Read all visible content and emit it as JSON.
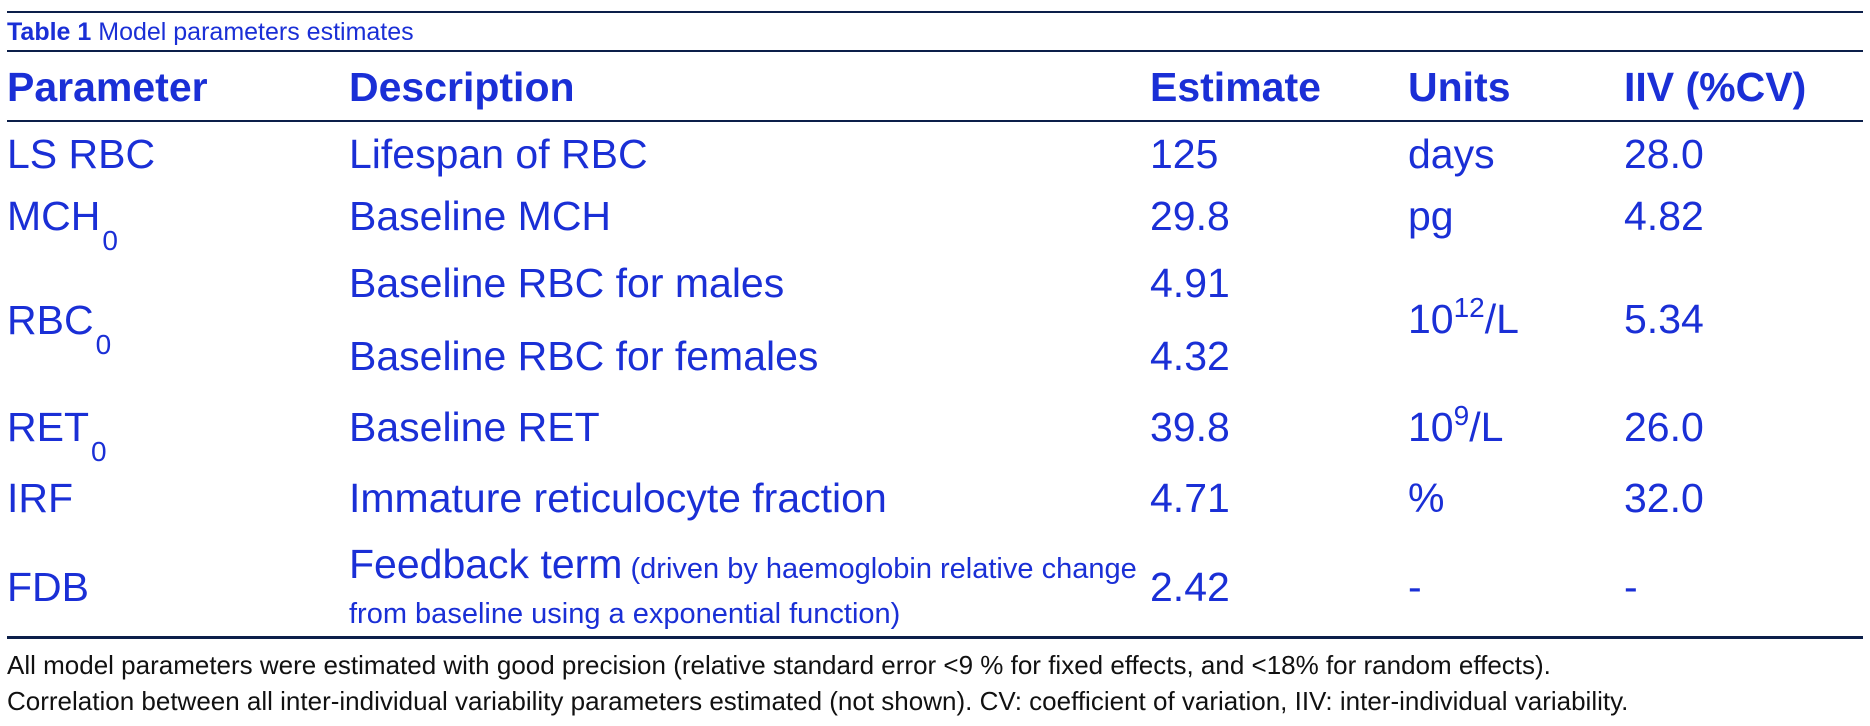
{
  "caption": {
    "label": "Table 1",
    "text": " Model parameters estimates"
  },
  "headers": {
    "parameter": "Parameter",
    "description": "Description",
    "estimate": "Estimate",
    "units": "Units",
    "iiv": "IIV (%CV)"
  },
  "rows": {
    "ls_rbc": {
      "param": "LS RBC",
      "desc": "Lifespan of RBC",
      "estimate": "125",
      "units": "days",
      "iiv": "28.0"
    },
    "mch0": {
      "param": "MCH",
      "param_sub": "0",
      "desc": "Baseline MCH",
      "estimate": "29.8",
      "units": "pg",
      "iiv": "4.82"
    },
    "rbc0": {
      "param": "RBC",
      "param_sub": "0",
      "desc_males": "Baseline RBC for males",
      "estimate_males": "4.91",
      "desc_females": "Baseline RBC for females",
      "estimate_females": "4.32",
      "units_base": "10",
      "units_sup": "12",
      "units_tail": "/L",
      "iiv": "5.34"
    },
    "ret0": {
      "param": "RET",
      "param_sub": "0",
      "desc": "Baseline RET",
      "estimate": "39.8",
      "units_base": "10",
      "units_sup": "9",
      "units_tail": "/L",
      "iiv": "26.0"
    },
    "irf": {
      "param": "IRF",
      "desc": "Immature reticulocyte fraction",
      "estimate": "4.71",
      "units": "%",
      "iiv": "32.0"
    },
    "fdb": {
      "param": "FDB",
      "desc_main": "Feedback term",
      "desc_note": " (driven by haemoglobin relative change from baseline using a exponential function)",
      "estimate": "2.42",
      "units": "-",
      "iiv": "-"
    }
  },
  "footnotes": {
    "line1": "All model parameters were estimated with good precision (relative standard error <9 % for fixed effects, and <18% for random effects).",
    "line2": "Correlation between all inter-individual variability parameters estimated (not shown). CV: coefficient of variation, IIV: inter-individual variability."
  }
}
